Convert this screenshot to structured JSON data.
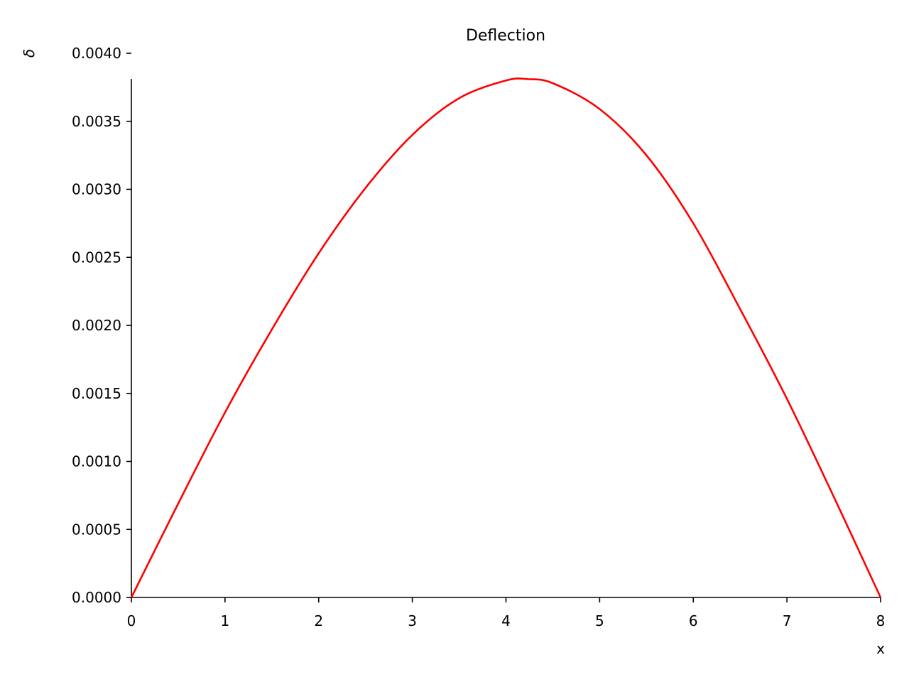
{
  "chart_data": {
    "type": "line",
    "title": "Deflection",
    "xlabel": "x",
    "ylabel": "δ",
    "xlim": [
      0,
      8
    ],
    "ylim": [
      0,
      0.004
    ],
    "x_ticks": [
      "0",
      "1",
      "2",
      "3",
      "4",
      "5",
      "6",
      "7",
      "8"
    ],
    "y_ticks": [
      "0.0000",
      "0.0005",
      "0.0010",
      "0.0015",
      "0.0020",
      "0.0025",
      "0.0030",
      "0.0035",
      "0.0040"
    ],
    "grid": false,
    "legend": false,
    "line_color": "#ff0000",
    "series": [
      {
        "x": [
          0,
          0.5,
          1,
          1.5,
          2,
          2.5,
          3,
          3.5,
          4,
          4.23,
          4.5,
          5,
          5.5,
          6,
          6.5,
          7,
          7.5,
          8
        ],
        "values": [
          0,
          0.00069,
          0.00136,
          0.00197,
          0.00253,
          0.00301,
          0.0034,
          0.00367,
          0.0038,
          0.00381,
          0.00378,
          0.00359,
          0.00325,
          0.00275,
          0.00212,
          0.00146,
          0.00074,
          0
        ]
      }
    ]
  }
}
